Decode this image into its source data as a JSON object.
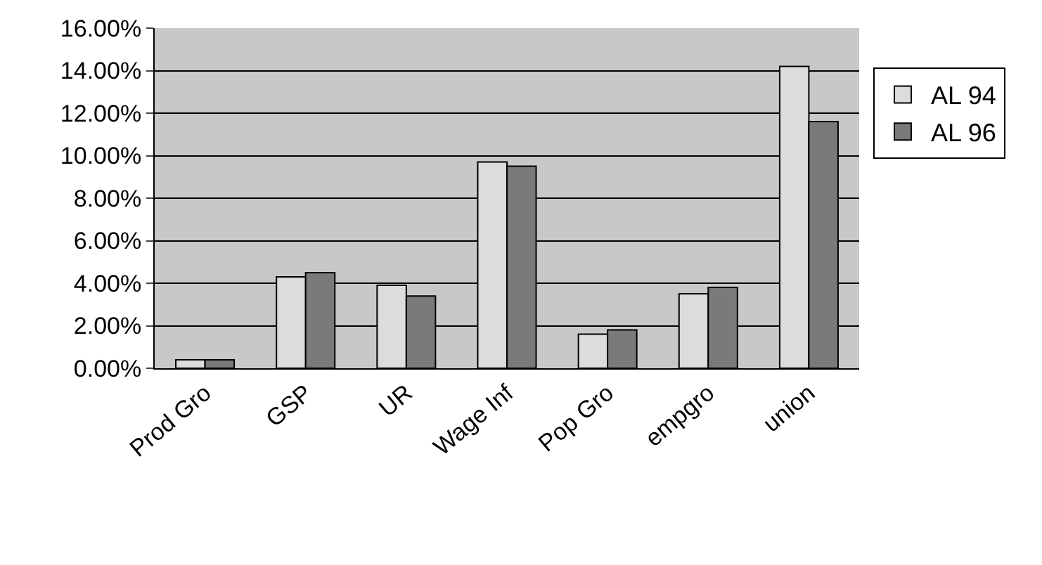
{
  "chart_data": {
    "type": "bar",
    "categories": [
      "Prod Gro",
      "GSP",
      "UR",
      "Wage Inf",
      "Pop Gro",
      "empgro",
      "union"
    ],
    "series": [
      {
        "name": "AL 94",
        "color": "#dcdcdc",
        "values": [
          0.4,
          4.3,
          3.9,
          9.7,
          1.6,
          3.5,
          14.2
        ]
      },
      {
        "name": "AL 96",
        "color": "#7a7a7a",
        "values": [
          0.4,
          4.5,
          3.4,
          9.5,
          1.8,
          3.8,
          11.6
        ]
      }
    ],
    "ylim": [
      0,
      16
    ],
    "yticks": [
      {
        "value": 0,
        "label": "0.00%"
      },
      {
        "value": 2,
        "label": "2.00%"
      },
      {
        "value": 4,
        "label": "4.00%"
      },
      {
        "value": 6,
        "label": "6.00%"
      },
      {
        "value": 8,
        "label": "8.00%"
      },
      {
        "value": 10,
        "label": "10.00%"
      },
      {
        "value": 12,
        "label": "12.00%"
      },
      {
        "value": 14,
        "label": "14.00%"
      },
      {
        "value": 16,
        "label": "16.00%"
      }
    ],
    "grid": "y",
    "legend": "right"
  }
}
